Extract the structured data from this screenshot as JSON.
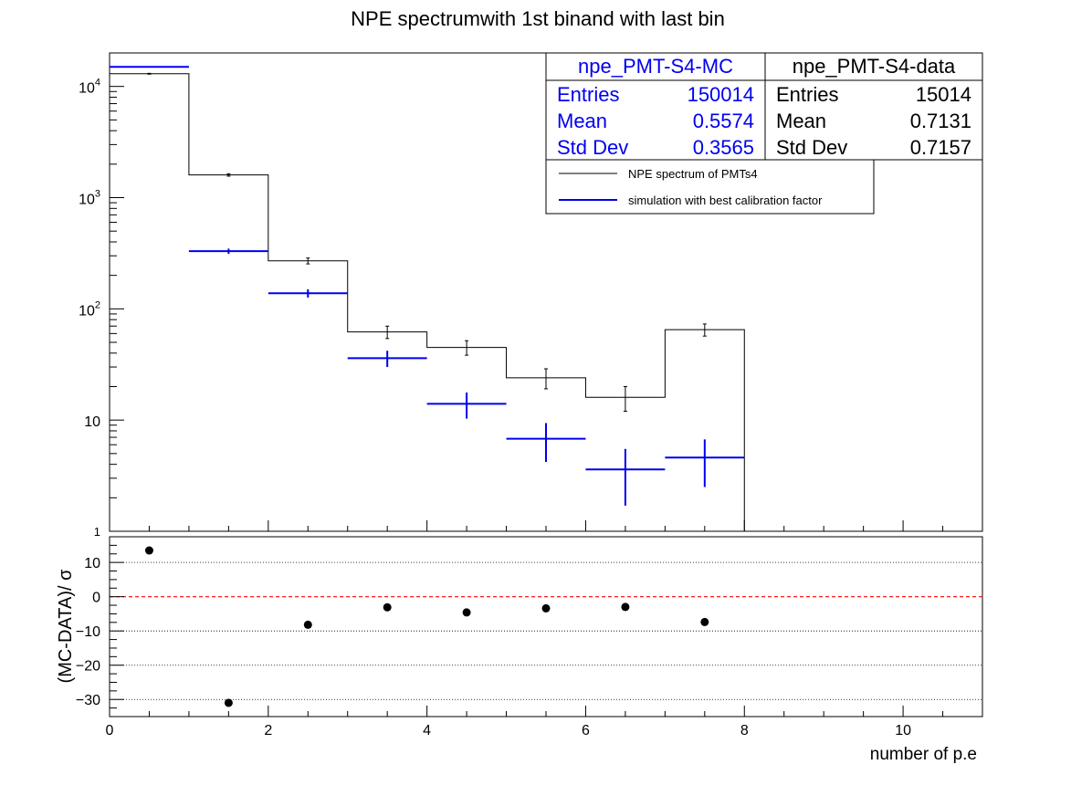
{
  "chart_data": [
    {
      "type": "histogram",
      "title": "NPE spectrumwith 1st binand with last bin",
      "y_scale": "log",
      "xlim": [
        0,
        11
      ],
      "ylim": [
        1,
        20000
      ],
      "y_ticks": [
        {
          "value": 10,
          "base": "10",
          "exp": ""
        },
        {
          "value": 100,
          "base": "10",
          "exp": "2"
        },
        {
          "value": 1000,
          "base": "10",
          "exp": "3"
        },
        {
          "value": 10000,
          "base": "10",
          "exp": "4"
        }
      ],
      "y_bottom_label": "1",
      "bin_edges": [
        0,
        1,
        2,
        3,
        4,
        5,
        6,
        7,
        8
      ],
      "series": [
        {
          "name": "NPE spectrum of PMTs4",
          "color": "#000000",
          "values": [
            13000,
            1600,
            270,
            62,
            45,
            24,
            16,
            65
          ],
          "errors": [
            114,
            40,
            16.4,
            7.9,
            6.7,
            4.9,
            4.0,
            8.1
          ]
        },
        {
          "name": "simulation with best calibration factor",
          "color": "#0000ee",
          "values": [
            15000,
            330,
            138,
            36,
            14,
            6.8,
            3.6,
            4.6
          ],
          "errors": [
            122,
            18,
            11.7,
            6,
            3.7,
            2.6,
            1.9,
            2.1
          ]
        }
      ],
      "legend": {
        "position": "top-right",
        "entries": [
          "NPE spectrum of PMTs4",
          "simulation with best calibration factor"
        ]
      },
      "stats_boxes": [
        {
          "title": "npe_PMT-S4-MC",
          "color": "#0000ee",
          "rows": [
            {
              "label": "Entries",
              "value": "150014"
            },
            {
              "label": "Mean",
              "value": "0.5574"
            },
            {
              "label": "Std Dev",
              "value": "0.3565"
            }
          ]
        },
        {
          "title": "npe_PMT-S4-data",
          "color": "#000000",
          "rows": [
            {
              "label": "Entries",
              "value": "15014"
            },
            {
              "label": "Mean",
              "value": "0.7131"
            },
            {
              "label": "Std Dev",
              "value": "0.7157"
            }
          ]
        }
      ]
    },
    {
      "type": "scatter",
      "ylabel": "(MC-DATA)/ σ",
      "xlabel": "number of p.e",
      "xlim": [
        0,
        11
      ],
      "ylim": [
        -35,
        17.5
      ],
      "x_ticks": [
        "0",
        "2",
        "4",
        "6",
        "8",
        "10"
      ],
      "y_ticks": [
        "10",
        "0",
        "−10",
        "−20",
        "−30"
      ],
      "grid": "horizontal dotted",
      "reference_line": {
        "y": 0,
        "color": "#ff0000",
        "style": "dashed"
      },
      "points": {
        "x": [
          0.5,
          1.5,
          2.5,
          3.5,
          4.5,
          5.5,
          6.5,
          7.5
        ],
        "y": [
          13.5,
          -31,
          -8.2,
          -3.1,
          -4.6,
          -3.4,
          -3.0,
          -7.4
        ]
      }
    }
  ]
}
